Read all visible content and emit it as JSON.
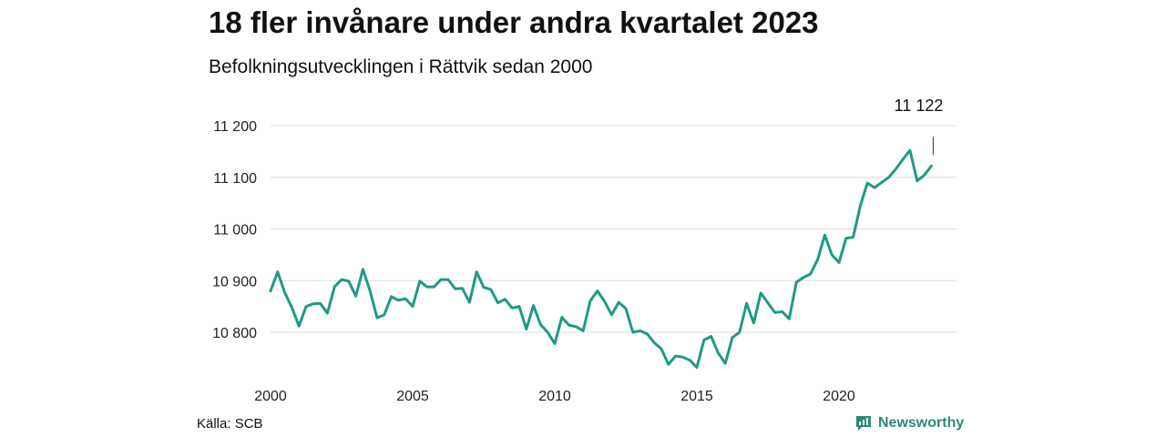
{
  "title": "18 fler invånare under andra kvartalet 2023",
  "subtitle": "Befolkningsutvecklingen i Rättvik sedan 2000",
  "source": "Källa: SCB",
  "brand": {
    "name": "Newsworthy",
    "icon": "newsworthy-logo-icon",
    "color": "#2a8a78"
  },
  "chart_data": {
    "type": "line",
    "title": "18 fler invånare under andra kvartalet 2023",
    "subtitle": "Befolkningsutvecklingen i Rättvik sedan 2000",
    "xlabel": "",
    "ylabel": "",
    "x_ticks": [
      "2000",
      "2005",
      "2010",
      "2015",
      "2020"
    ],
    "y_ticks": [
      "10 800",
      "10 900",
      "11 000",
      "11 100",
      "11 200"
    ],
    "y_tick_values": [
      10800,
      10900,
      11000,
      11100,
      11200
    ],
    "xlim": [
      2000,
      2024
    ],
    "ylim": [
      10720,
      11240
    ],
    "grid": "horizontal",
    "line_color": "#1f9a86",
    "annotation": {
      "label": "11 122",
      "year": 2023.25,
      "value": 11122
    },
    "series": [
      {
        "x_start": 2000,
        "x_step": 0.25,
        "values": [
          10880,
          10917,
          10877,
          10848,
          10812,
          10850,
          10855,
          10856,
          10837,
          10888,
          10902,
          10899,
          10870,
          10922,
          10880,
          10828,
          10834,
          10869,
          10862,
          10865,
          10850,
          10899,
          10888,
          10888,
          10902,
          10902,
          10884,
          10885,
          10858,
          10917,
          10887,
          10883,
          10857,
          10864,
          10847,
          10850,
          10806,
          10852,
          10815,
          10800,
          10778,
          10829,
          10814,
          10811,
          10803,
          10861,
          10880,
          10860,
          10834,
          10858,
          10846,
          10800,
          10803,
          10797,
          10780,
          10768,
          10738,
          10754,
          10752,
          10746,
          10732,
          10785,
          10792,
          10760,
          10740,
          10790,
          10800,
          10856,
          10818,
          10876,
          10857,
          10838,
          10840,
          10826,
          10897,
          10906,
          10913,
          10941,
          10988,
          10950,
          10935,
          10982,
          10984,
          11045,
          11089,
          11080,
          11090,
          11100,
          11116,
          11135,
          11152,
          11093,
          11104,
          11122
        ]
      }
    ]
  }
}
